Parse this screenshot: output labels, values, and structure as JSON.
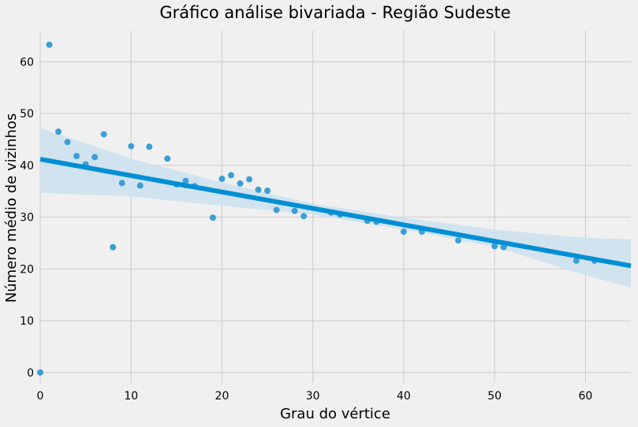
{
  "chart_data": {
    "type": "scatter",
    "title": "Gráfico análise bivariada - Região Sudeste",
    "xlabel": "Grau do vértice",
    "ylabel": "Número médio de vizinhos",
    "xlim": [
      0,
      65
    ],
    "ylim": [
      -2,
      66
    ],
    "xticks": [
      0,
      10,
      20,
      30,
      40,
      50,
      60
    ],
    "yticks": [
      0,
      10,
      20,
      30,
      40,
      50,
      60
    ],
    "grid": true,
    "points": [
      {
        "x": 0,
        "y": 0
      },
      {
        "x": 1,
        "y": 63.3
      },
      {
        "x": 2,
        "y": 46.5
      },
      {
        "x": 3,
        "y": 44.5
      },
      {
        "x": 4,
        "y": 41.8
      },
      {
        "x": 5,
        "y": 40.2
      },
      {
        "x": 6,
        "y": 41.6
      },
      {
        "x": 7,
        "y": 46.0
      },
      {
        "x": 8,
        "y": 24.2
      },
      {
        "x": 9,
        "y": 36.6
      },
      {
        "x": 10,
        "y": 43.7
      },
      {
        "x": 11,
        "y": 36.1
      },
      {
        "x": 12,
        "y": 43.6
      },
      {
        "x": 14,
        "y": 41.3
      },
      {
        "x": 15,
        "y": 36.3
      },
      {
        "x": 16,
        "y": 37.0
      },
      {
        "x": 16,
        "y": 36.2
      },
      {
        "x": 17,
        "y": 36.0
      },
      {
        "x": 19,
        "y": 29.9
      },
      {
        "x": 20,
        "y": 37.4
      },
      {
        "x": 21,
        "y": 38.1
      },
      {
        "x": 22,
        "y": 36.5
      },
      {
        "x": 23,
        "y": 37.3
      },
      {
        "x": 24,
        "y": 35.3
      },
      {
        "x": 25,
        "y": 35.1
      },
      {
        "x": 26,
        "y": 31.4
      },
      {
        "x": 28,
        "y": 31.2
      },
      {
        "x": 29,
        "y": 30.2
      },
      {
        "x": 32,
        "y": 30.9
      },
      {
        "x": 33,
        "y": 30.5
      },
      {
        "x": 36,
        "y": 29.3
      },
      {
        "x": 37,
        "y": 29.1
      },
      {
        "x": 40,
        "y": 27.2
      },
      {
        "x": 42,
        "y": 27.2
      },
      {
        "x": 46,
        "y": 25.5
      },
      {
        "x": 50,
        "y": 24.4
      },
      {
        "x": 51,
        "y": 24.2
      },
      {
        "x": 59,
        "y": 21.6
      },
      {
        "x": 61,
        "y": 21.6
      }
    ],
    "regression": {
      "x": [
        0,
        65
      ],
      "y": [
        41.2,
        20.6
      ]
    },
    "confidence_band": {
      "x": [
        0,
        10,
        20,
        30,
        40,
        50,
        60,
        65
      ],
      "upper": [
        47.2,
        41.3,
        36.7,
        32.6,
        29.9,
        27.6,
        26.0,
        25.7
      ],
      "lower": [
        34.7,
        34.0,
        32.2,
        30.5,
        27.6,
        24.3,
        18.8,
        16.4
      ]
    },
    "colors": {
      "point": "#3b9fd4",
      "line": "#008fd5",
      "band": "#cde1ee",
      "grid": "#cbcbcb",
      "background": "#f0f0f0"
    }
  }
}
